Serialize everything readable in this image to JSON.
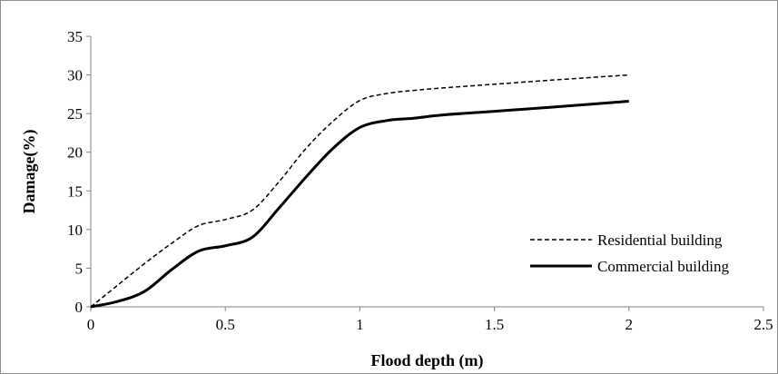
{
  "chart_data": {
    "type": "line",
    "title": "",
    "xlabel": "Flood depth (m)",
    "ylabel": "Damage(%)",
    "xlim": [
      0,
      2.5
    ],
    "ylim": [
      0,
      35
    ],
    "x_ticks": [
      0,
      0.5,
      1,
      1.5,
      2,
      2.5
    ],
    "y_ticks": [
      0,
      5,
      10,
      15,
      20,
      25,
      30,
      35
    ],
    "x_tick_labels": [
      "0",
      "0.5",
      "1",
      "1.5",
      "2",
      "2.5"
    ],
    "y_tick_labels": [
      "0",
      "5",
      "10",
      "15",
      "20",
      "25",
      "30",
      "35"
    ],
    "grid": false,
    "legend_position": "lower-right",
    "series": [
      {
        "name": "Residential building",
        "style": "dashed",
        "color": "#000000",
        "x": [
          0,
          0.1,
          0.2,
          0.3,
          0.4,
          0.5,
          0.6,
          0.7,
          0.8,
          0.9,
          1.0,
          1.1,
          1.2,
          1.3,
          1.5,
          1.7,
          2.0
        ],
        "y": [
          0,
          2.8,
          5.6,
          8.2,
          10.5,
          11.3,
          12.5,
          16.2,
          20.5,
          24.0,
          26.7,
          27.6,
          28.0,
          28.3,
          28.8,
          29.3,
          30.0
        ]
      },
      {
        "name": "Commercial building",
        "style": "solid",
        "color": "#000000",
        "x": [
          0,
          0.1,
          0.2,
          0.3,
          0.4,
          0.5,
          0.6,
          0.7,
          0.8,
          0.9,
          1.0,
          1.1,
          1.2,
          1.3,
          1.5,
          1.7,
          2.0
        ],
        "y": [
          0,
          0.7,
          2.0,
          4.8,
          7.2,
          7.9,
          9.0,
          12.8,
          16.8,
          20.5,
          23.2,
          24.1,
          24.4,
          24.8,
          25.3,
          25.8,
          26.6
        ]
      }
    ]
  }
}
